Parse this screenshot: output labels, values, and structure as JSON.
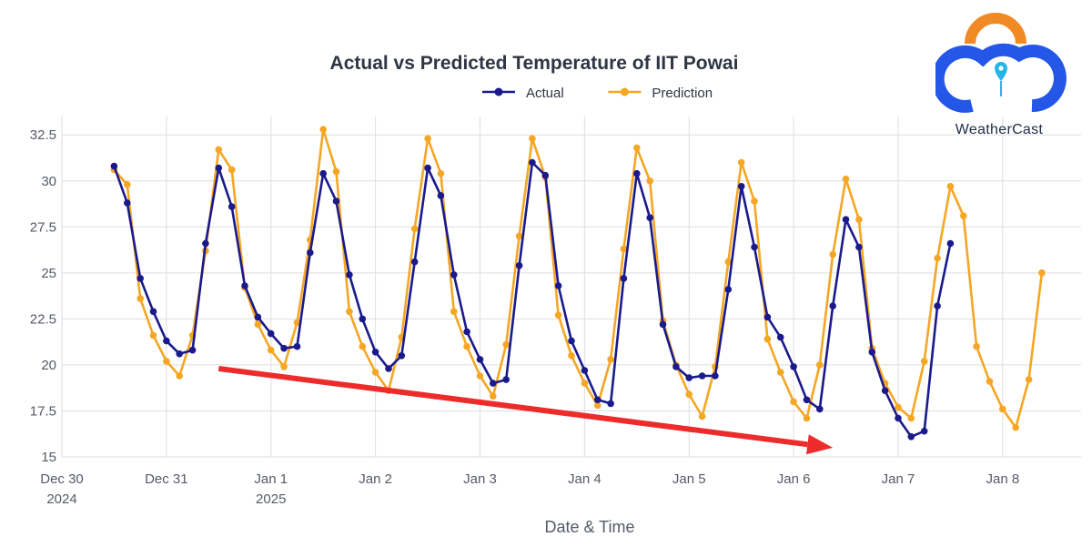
{
  "chart_data": {
    "type": "line",
    "title": "Actual vs Predicted Temperature of IIT Powai",
    "xlabel": "Date & Time",
    "ylabel": "",
    "ylim": [
      15,
      33.5
    ],
    "xlim": [
      "2024-12-30 00:00",
      "2025-01-08 18:00"
    ],
    "yticks": [
      15,
      17.5,
      20,
      22.5,
      25,
      27.5,
      30,
      32.5
    ],
    "ytick_labels": [
      "15",
      "17.5",
      "20",
      "22.5",
      "25",
      "27.5",
      "30",
      "32.5"
    ],
    "xticks": [
      {
        "x": "2024-12-30",
        "line1": "Dec 30",
        "line2": "2024"
      },
      {
        "x": "2024-12-31",
        "line1": "Dec 31",
        "line2": ""
      },
      {
        "x": "2025-01-01",
        "line1": "Jan 1",
        "line2": "2025"
      },
      {
        "x": "2025-01-02",
        "line1": "Jan 2",
        "line2": ""
      },
      {
        "x": "2025-01-03",
        "line1": "Jan 3",
        "line2": ""
      },
      {
        "x": "2025-01-04",
        "line1": "Jan 4",
        "line2": ""
      },
      {
        "x": "2025-01-05",
        "line1": "Jan 5",
        "line2": ""
      },
      {
        "x": "2025-01-06",
        "line1": "Jan 6",
        "line2": ""
      },
      {
        "x": "2025-01-07",
        "line1": "Jan 7",
        "line2": ""
      },
      {
        "x": "2025-01-08",
        "line1": "Jan 8",
        "line2": ""
      }
    ],
    "grid": true,
    "legend_position": "top-center",
    "series": [
      {
        "name": "Actual",
        "color": "#1a1a8c",
        "points": [
          [
            "2024-12-30 12:00",
            30.8
          ],
          [
            "2024-12-30 15:00",
            28.8
          ],
          [
            "2024-12-30 18:00",
            24.7
          ],
          [
            "2024-12-30 21:00",
            22.9
          ],
          [
            "2024-12-31 00:00",
            21.3
          ],
          [
            "2024-12-31 03:00",
            20.6
          ],
          [
            "2024-12-31 06:00",
            20.8
          ],
          [
            "2024-12-31 09:00",
            26.6
          ],
          [
            "2024-12-31 12:00",
            30.7
          ],
          [
            "2024-12-31 15:00",
            28.6
          ],
          [
            "2024-12-31 18:00",
            24.3
          ],
          [
            "2024-12-31 21:00",
            22.6
          ],
          [
            "2025-01-01 00:00",
            21.7
          ],
          [
            "2025-01-01 03:00",
            20.9
          ],
          [
            "2025-01-01 06:00",
            21.0
          ],
          [
            "2025-01-01 09:00",
            26.1
          ],
          [
            "2025-01-01 12:00",
            30.4
          ],
          [
            "2025-01-01 15:00",
            28.9
          ],
          [
            "2025-01-01 18:00",
            24.9
          ],
          [
            "2025-01-01 21:00",
            22.5
          ],
          [
            "2025-01-02 00:00",
            20.7
          ],
          [
            "2025-01-02 03:00",
            19.8
          ],
          [
            "2025-01-02 06:00",
            20.5
          ],
          [
            "2025-01-02 09:00",
            25.6
          ],
          [
            "2025-01-02 12:00",
            30.7
          ],
          [
            "2025-01-02 15:00",
            29.2
          ],
          [
            "2025-01-02 18:00",
            24.9
          ],
          [
            "2025-01-02 21:00",
            21.8
          ],
          [
            "2025-01-03 00:00",
            20.3
          ],
          [
            "2025-01-03 03:00",
            19.0
          ],
          [
            "2025-01-03 06:00",
            19.2
          ],
          [
            "2025-01-03 09:00",
            25.4
          ],
          [
            "2025-01-03 12:00",
            31.0
          ],
          [
            "2025-01-03 15:00",
            30.3
          ],
          [
            "2025-01-03 18:00",
            24.3
          ],
          [
            "2025-01-03 21:00",
            21.3
          ],
          [
            "2025-01-04 00:00",
            19.7
          ],
          [
            "2025-01-04 03:00",
            18.1
          ],
          [
            "2025-01-04 06:00",
            17.9
          ],
          [
            "2025-01-04 09:00",
            24.7
          ],
          [
            "2025-01-04 12:00",
            30.4
          ],
          [
            "2025-01-04 15:00",
            28.0
          ],
          [
            "2025-01-04 18:00",
            22.2
          ],
          [
            "2025-01-04 21:00",
            19.9
          ],
          [
            "2025-01-05 00:00",
            19.3
          ],
          [
            "2025-01-05 03:00",
            19.4
          ],
          [
            "2025-01-05 06:00",
            19.4
          ],
          [
            "2025-01-05 09:00",
            24.1
          ],
          [
            "2025-01-05 12:00",
            29.7
          ],
          [
            "2025-01-05 15:00",
            26.4
          ],
          [
            "2025-01-05 18:00",
            22.6
          ],
          [
            "2025-01-05 21:00",
            21.5
          ],
          [
            "2025-01-06 00:00",
            19.9
          ],
          [
            "2025-01-06 03:00",
            18.1
          ],
          [
            "2025-01-06 06:00",
            17.6
          ],
          [
            "2025-01-06 09:00",
            23.2
          ],
          [
            "2025-01-06 12:00",
            27.9
          ],
          [
            "2025-01-06 15:00",
            26.4
          ],
          [
            "2025-01-06 18:00",
            20.7
          ],
          [
            "2025-01-06 21:00",
            18.6
          ],
          [
            "2025-01-07 00:00",
            17.1
          ],
          [
            "2025-01-07 03:00",
            16.1
          ],
          [
            "2025-01-07 06:00",
            16.4
          ],
          [
            "2025-01-07 09:00",
            23.2
          ],
          [
            "2025-01-07 12:00",
            26.6
          ]
        ]
      },
      {
        "name": "Prediction",
        "color": "#f5a623",
        "points": [
          [
            "2024-12-30 12:00",
            30.6
          ],
          [
            "2024-12-30 15:00",
            29.8
          ],
          [
            "2024-12-30 18:00",
            23.6
          ],
          [
            "2024-12-30 21:00",
            21.6
          ],
          [
            "2024-12-31 00:00",
            20.2
          ],
          [
            "2024-12-31 03:00",
            19.4
          ],
          [
            "2024-12-31 06:00",
            21.6
          ],
          [
            "2024-12-31 09:00",
            26.2
          ],
          [
            "2024-12-31 12:00",
            31.7
          ],
          [
            "2024-12-31 15:00",
            30.6
          ],
          [
            "2024-12-31 18:00",
            24.2
          ],
          [
            "2024-12-31 21:00",
            22.2
          ],
          [
            "2025-01-01 00:00",
            20.8
          ],
          [
            "2025-01-01 03:00",
            19.9
          ],
          [
            "2025-01-01 06:00",
            22.3
          ],
          [
            "2025-01-01 09:00",
            26.8
          ],
          [
            "2025-01-01 12:00",
            32.8
          ],
          [
            "2025-01-01 15:00",
            30.5
          ],
          [
            "2025-01-01 18:00",
            22.9
          ],
          [
            "2025-01-01 21:00",
            21.0
          ],
          [
            "2025-01-02 00:00",
            19.6
          ],
          [
            "2025-01-02 03:00",
            18.6
          ],
          [
            "2025-01-02 06:00",
            21.5
          ],
          [
            "2025-01-02 09:00",
            27.4
          ],
          [
            "2025-01-02 12:00",
            32.3
          ],
          [
            "2025-01-02 15:00",
            30.4
          ],
          [
            "2025-01-02 18:00",
            22.9
          ],
          [
            "2025-01-02 21:00",
            21.0
          ],
          [
            "2025-01-03 00:00",
            19.4
          ],
          [
            "2025-01-03 03:00",
            18.3
          ],
          [
            "2025-01-03 06:00",
            21.1
          ],
          [
            "2025-01-03 09:00",
            27.0
          ],
          [
            "2025-01-03 12:00",
            32.3
          ],
          [
            "2025-01-03 15:00",
            30.2
          ],
          [
            "2025-01-03 18:00",
            22.7
          ],
          [
            "2025-01-03 21:00",
            20.5
          ],
          [
            "2025-01-04 00:00",
            19.0
          ],
          [
            "2025-01-04 03:00",
            17.8
          ],
          [
            "2025-01-04 06:00",
            20.3
          ],
          [
            "2025-01-04 09:00",
            26.3
          ],
          [
            "2025-01-04 12:00",
            31.8
          ],
          [
            "2025-01-04 15:00",
            30.0
          ],
          [
            "2025-01-04 18:00",
            22.4
          ],
          [
            "2025-01-04 21:00",
            20.0
          ],
          [
            "2025-01-05 00:00",
            18.4
          ],
          [
            "2025-01-05 03:00",
            17.2
          ],
          [
            "2025-01-05 06:00",
            19.9
          ],
          [
            "2025-01-05 09:00",
            25.6
          ],
          [
            "2025-01-05 12:00",
            31.0
          ],
          [
            "2025-01-05 15:00",
            28.9
          ],
          [
            "2025-01-05 18:00",
            21.4
          ],
          [
            "2025-01-05 21:00",
            19.6
          ],
          [
            "2025-01-06 00:00",
            18.0
          ],
          [
            "2025-01-06 03:00",
            17.1
          ],
          [
            "2025-01-06 06:00",
            20.0
          ],
          [
            "2025-01-06 09:00",
            26.0
          ],
          [
            "2025-01-06 12:00",
            30.1
          ],
          [
            "2025-01-06 15:00",
            27.9
          ],
          [
            "2025-01-06 18:00",
            20.9
          ],
          [
            "2025-01-06 21:00",
            19.0
          ],
          [
            "2025-01-07 00:00",
            17.7
          ],
          [
            "2025-01-07 03:00",
            17.1
          ],
          [
            "2025-01-07 06:00",
            20.2
          ],
          [
            "2025-01-07 09:00",
            25.8
          ],
          [
            "2025-01-07 12:00",
            29.7
          ],
          [
            "2025-01-07 15:00",
            28.1
          ],
          [
            "2025-01-07 18:00",
            21.0
          ],
          [
            "2025-01-07 21:00",
            19.1
          ],
          [
            "2025-01-08 00:00",
            17.6
          ],
          [
            "2025-01-08 03:00",
            16.6
          ],
          [
            "2025-01-08 06:00",
            19.2
          ],
          [
            "2025-01-08 09:00",
            25.0
          ]
        ]
      }
    ],
    "annotation": {
      "type": "arrow",
      "color": "#ee2b2b",
      "from": [
        "2024-12-31 12:00",
        19.8
      ],
      "to": [
        "2025-01-06 09:00",
        15.5
      ]
    }
  },
  "logo": {
    "name": "WeatherCast",
    "colors": {
      "arc": "#f08a24",
      "cloud": "#2456e8",
      "pin": "#25b6e6"
    }
  }
}
